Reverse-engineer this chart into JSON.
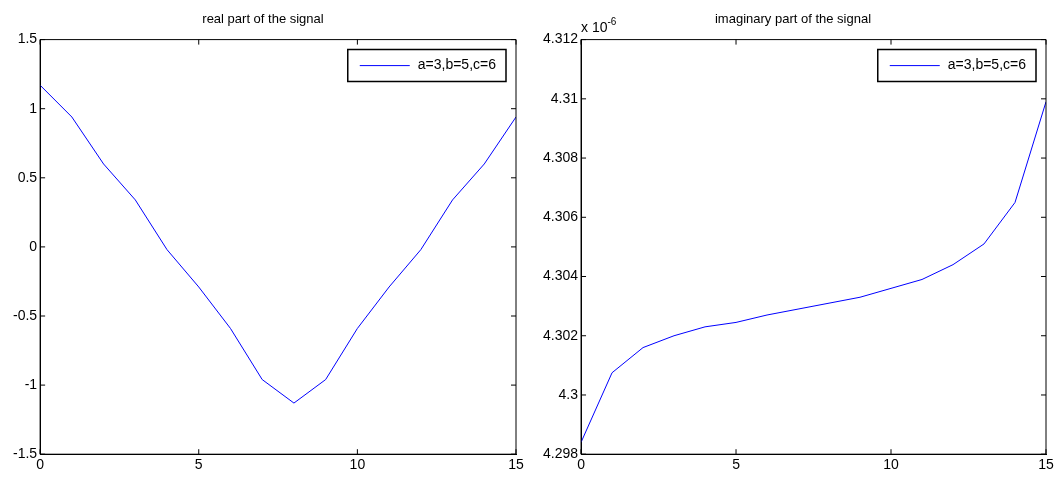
{
  "chart_data": [
    {
      "type": "line",
      "title": "real part of the signal",
      "x": [
        0,
        1,
        2,
        3,
        4,
        5,
        6,
        7,
        8,
        9,
        10,
        11,
        12,
        13,
        14,
        15
      ],
      "series": [
        {
          "name": "a=3,b=5,c=6",
          "color": "#0000ff",
          "values": [
            1.17,
            0.94,
            0.6,
            0.34,
            -0.02,
            -0.29,
            -0.59,
            -0.96,
            -1.13,
            -0.96,
            -0.59,
            -0.29,
            -0.02,
            0.34,
            0.6,
            0.94
          ]
        }
      ],
      "xlim": [
        0,
        15
      ],
      "xticks": [
        0,
        5,
        10,
        15
      ],
      "ylim": [
        -1.5,
        1.5
      ],
      "yticks": [
        -1.5,
        -1,
        -0.5,
        0,
        0.5,
        1,
        1.5
      ],
      "grid": false,
      "legend": "top right",
      "marker": "none",
      "line_style": "solid"
    },
    {
      "type": "line",
      "title": "imaginary part of the signal",
      "x": [
        0,
        1,
        2,
        3,
        4,
        5,
        6,
        7,
        8,
        9,
        10,
        11,
        12,
        13,
        14,
        15
      ],
      "series": [
        {
          "name": "a=3,b=5,c=6",
          "color": "#0000ff",
          "values": [
            4.2984,
            4.30075,
            4.3016,
            4.302,
            4.3023,
            4.30245,
            4.3027,
            4.3029,
            4.3031,
            4.3033,
            4.3036,
            4.3039,
            4.3044,
            4.3051,
            4.3065,
            4.3099
          ]
        }
      ],
      "xlim": [
        0,
        15
      ],
      "xticks": [
        0,
        5,
        10,
        15
      ],
      "ylim": [
        4.298,
        4.312
      ],
      "yticks": [
        4.298,
        4.3,
        4.302,
        4.304,
        4.306,
        4.308,
        4.31,
        4.312
      ],
      "grid": false,
      "legend": "top right",
      "marker": "none",
      "line_style": "solid",
      "annotations": [
        "x 10$^{-6}$"
      ]
    }
  ]
}
